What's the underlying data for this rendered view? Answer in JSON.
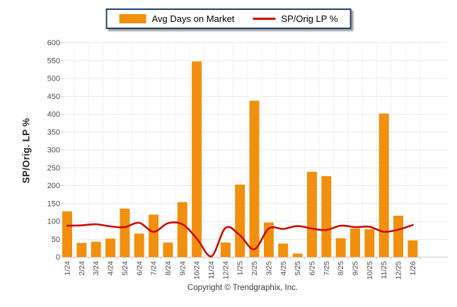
{
  "legend": {
    "bar_label": "Avg Days on Market",
    "line_label": "SP/Orig LP %"
  },
  "y_axis_title": "SP/Orig. LP %",
  "footer": {
    "copyright": "Copyright © Trendgraphix, Inc."
  },
  "colors": {
    "bar": "#F0900E",
    "line": "#CC0A00",
    "legend_border": "#23406E",
    "gridline": "#E9E9E9",
    "vertical_gridline": "#F2F2F2",
    "axis": "#C9C9C9",
    "tick_text": "#4D4D4D"
  },
  "chart_data": {
    "type": "bar",
    "title": "",
    "xlabel": "",
    "ylabel": "SP/Orig. LP %",
    "ylim": [
      0,
      600
    ],
    "ytick_step": 50,
    "grid": true,
    "legend_position": "top-center",
    "categories": [
      "1/24",
      "2/24",
      "3/24",
      "4/24",
      "5/24",
      "6/24",
      "7/24",
      "8/24",
      "9/24",
      "10/24",
      "11/24",
      "12/24",
      "1/25",
      "2/25",
      "3/25",
      "4/25",
      "5/25",
      "6/25",
      "7/25",
      "8/25",
      "9/25",
      "10/25",
      "11/25",
      "12/25",
      "1/26"
    ],
    "series": [
      {
        "name": "Avg Days on Market",
        "type": "bar",
        "values": [
          128,
          40,
          43,
          52,
          136,
          66,
          119,
          41,
          154,
          548,
          0,
          41,
          203,
          438,
          97,
          38,
          10,
          239,
          227,
          53,
          80,
          78,
          402,
          116,
          47
        ]
      },
      {
        "name": "SP/Orig LP %",
        "type": "line",
        "values": [
          88,
          89,
          92,
          86,
          84,
          96,
          71,
          95,
          92,
          52,
          1,
          82,
          61,
          22,
          80,
          79,
          87,
          80,
          76,
          88,
          84,
          85,
          71,
          77,
          90
        ]
      }
    ]
  }
}
